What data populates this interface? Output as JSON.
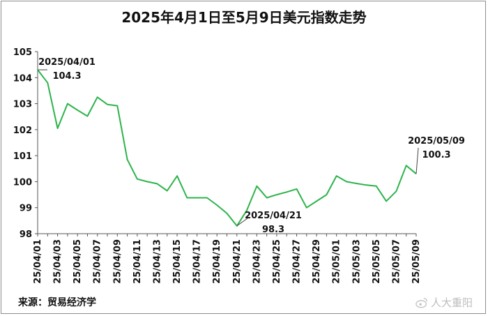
{
  "source_label": "来源：贸易经济学",
  "watermark_text": "人大重阳",
  "colors": {
    "line": "#2cb34a",
    "axis": "#555555",
    "annotation_line": "#444444"
  },
  "chart_data": {
    "type": "line",
    "title": "2025年4月1日至5月9日美元指数走势",
    "xlabel": "",
    "ylabel": "",
    "ylim": [
      98,
      105
    ],
    "yticks": [
      98,
      99,
      100,
      101,
      102,
      103,
      104,
      105
    ],
    "x": [
      "25/04/01",
      "25/04/02",
      "25/04/03",
      "25/04/04",
      "25/04/05",
      "25/04/06",
      "25/04/07",
      "25/04/08",
      "25/04/09",
      "25/04/10",
      "25/04/11",
      "25/04/12",
      "25/04/13",
      "25/04/14",
      "25/04/15",
      "25/04/16",
      "25/04/17",
      "25/04/18",
      "25/04/19",
      "25/04/20",
      "25/04/21",
      "25/04/22",
      "25/04/23",
      "25/04/24",
      "25/04/25",
      "25/04/26",
      "25/04/27",
      "25/04/28",
      "25/04/29",
      "25/04/30",
      "25/05/01",
      "25/05/02",
      "25/05/03",
      "25/05/04",
      "25/05/05",
      "25/05/06",
      "25/05/07",
      "25/05/08",
      "25/05/09"
    ],
    "xtick_labels": [
      "25/04/01",
      "25/04/03",
      "25/04/05",
      "25/04/07",
      "25/04/09",
      "25/04/11",
      "25/04/13",
      "25/04/15",
      "25/04/17",
      "25/04/19",
      "25/04/21",
      "25/04/23",
      "25/04/25",
      "25/04/27",
      "25/04/29",
      "25/05/01",
      "25/05/03",
      "25/05/05",
      "25/05/07",
      "25/05/09"
    ],
    "series": [
      {
        "values": [
          104.3,
          103.8,
          102.05,
          103.0,
          102.75,
          102.52,
          103.25,
          102.97,
          102.92,
          100.85,
          100.1,
          100.0,
          99.92,
          99.65,
          100.22,
          99.38,
          99.38,
          99.38,
          99.1,
          98.78,
          98.3,
          98.9,
          99.83,
          99.38,
          99.5,
          99.6,
          99.72,
          99.0,
          99.25,
          99.5,
          100.22,
          100.0,
          99.93,
          99.87,
          99.83,
          99.25,
          99.63,
          100.62,
          100.3
        ]
      }
    ],
    "annotations": [
      {
        "date": "2025/04/01",
        "value": "104.3",
        "index": 0
      },
      {
        "date": "2025/04/21",
        "value": "98.3",
        "index": 20
      },
      {
        "date": "2025/05/09",
        "value": "100.3",
        "index": 38
      }
    ],
    "grid": false,
    "legend": "none"
  }
}
